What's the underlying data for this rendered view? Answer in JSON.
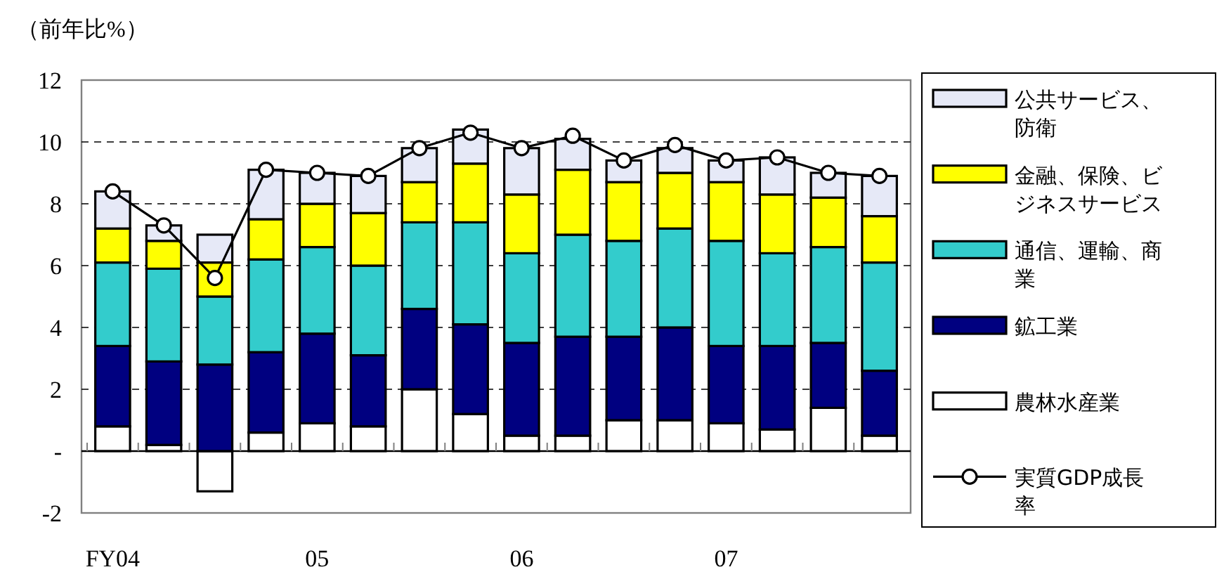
{
  "chart_data": {
    "type": "bar",
    "stacked": true,
    "ylabel": "（前年比%）",
    "categories": [
      "FY04",
      null,
      null,
      null,
      "05",
      null,
      null,
      null,
      "06",
      null,
      null,
      null,
      "07",
      null,
      null,
      null
    ],
    "series": [
      {
        "name": "農林水産業",
        "color": "#ffffff",
        "values": [
          0.8,
          0.2,
          -1.3,
          0.6,
          0.9,
          0.8,
          2.0,
          1.2,
          0.5,
          0.5,
          1.0,
          1.0,
          0.9,
          0.7,
          1.4,
          0.5
        ]
      },
      {
        "name": "鉱工業",
        "color": "#000080",
        "values": [
          2.6,
          2.7,
          2.8,
          2.6,
          2.9,
          2.3,
          2.6,
          2.9,
          3.0,
          3.2,
          2.7,
          3.0,
          2.5,
          2.7,
          2.1,
          2.1
        ]
      },
      {
        "name": "通信、運輸、商業",
        "color": "#33cccc",
        "values": [
          2.7,
          3.0,
          2.2,
          3.0,
          2.8,
          2.9,
          2.8,
          3.3,
          2.9,
          3.3,
          3.1,
          3.2,
          3.4,
          3.0,
          3.1,
          3.5
        ]
      },
      {
        "name": "金融、保険、ビジネスサービス",
        "color": "#ffff00",
        "values": [
          1.1,
          0.9,
          1.1,
          1.3,
          1.4,
          1.7,
          1.3,
          1.9,
          1.9,
          2.1,
          1.9,
          1.8,
          1.9,
          1.9,
          1.6,
          1.5
        ]
      },
      {
        "name": "公共サービス、防衛",
        "color": "#e6e9f7",
        "values": [
          1.2,
          0.5,
          0.9,
          1.6,
          1.0,
          1.2,
          1.1,
          1.1,
          1.5,
          1.0,
          0.7,
          0.8,
          0.7,
          1.2,
          0.8,
          1.3
        ]
      },
      {
        "name": "実質GDP成長率",
        "type": "line",
        "color": "#000000",
        "marker": "circle",
        "values": [
          8.4,
          7.3,
          5.6,
          9.1,
          9.0,
          8.9,
          9.8,
          10.3,
          9.8,
          10.2,
          9.4,
          9.9,
          9.4,
          9.5,
          9.0,
          8.9
        ]
      }
    ],
    "ylim": [
      -2,
      12
    ],
    "yticks": [
      -2,
      {
        "value": 0,
        "label": "-"
      },
      2,
      4,
      6,
      8,
      10,
      12
    ],
    "grid": "y",
    "legend": "right"
  }
}
